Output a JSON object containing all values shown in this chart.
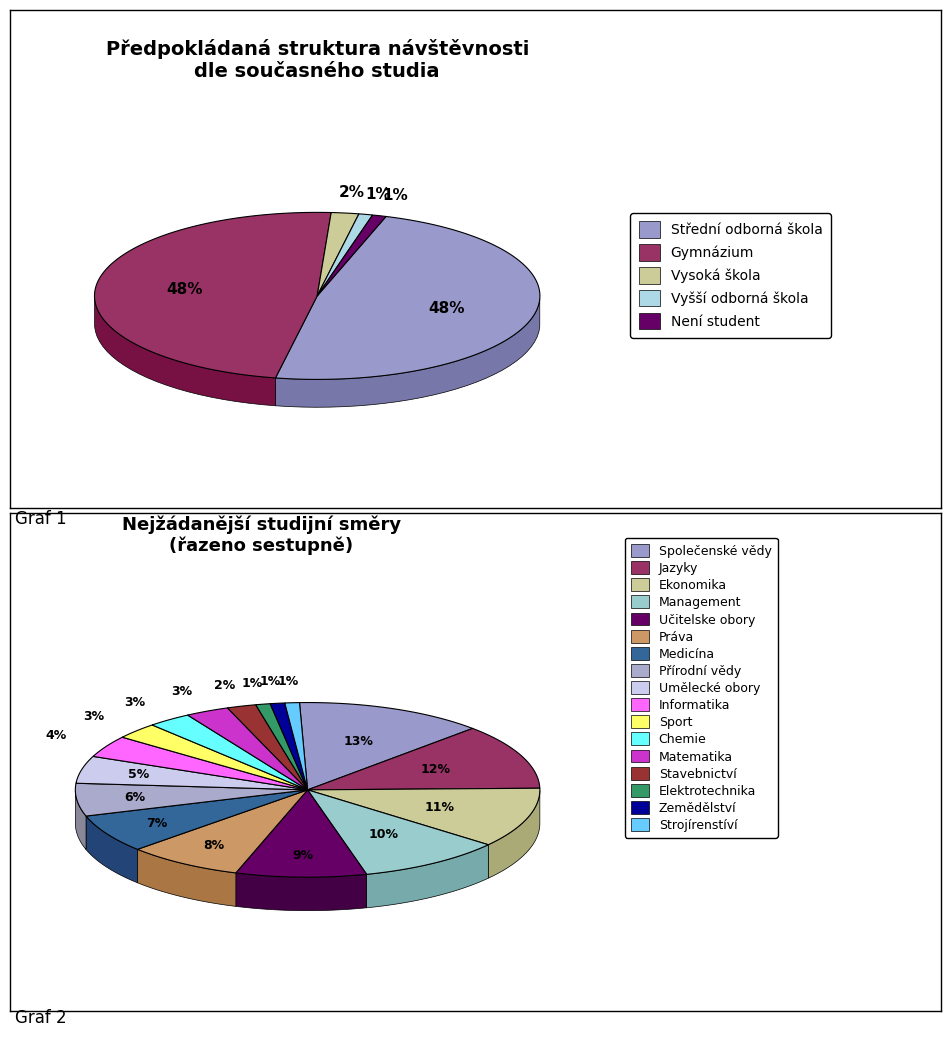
{
  "chart1": {
    "title": "Předpokládaná struktura návštěvnosti\ndle současného studia",
    "values": [
      48,
      48,
      2,
      1,
      1
    ],
    "pct_labels": [
      "48%",
      "48%",
      "2%",
      "1%",
      "1%"
    ],
    "colors": [
      "#9999cc",
      "#993366",
      "#cccc99",
      "#add8e6",
      "#660066"
    ],
    "legend_labels": [
      "Střední odborná škola",
      "Gymnázium",
      "Vysoká škola",
      "Vyšší odborná škola",
      "Není student"
    ],
    "legend_colors": [
      "#9999cc",
      "#993366",
      "#cccc99",
      "#add8e6",
      "#660066"
    ],
    "startangle": 72,
    "shadow_colors": [
      "#7777aa",
      "#771144",
      "#aaaa77",
      "#8bb6c4",
      "#440044"
    ]
  },
  "chart2": {
    "title": "Nejžádanější studijní směry\n(řazeno sestupně)",
    "values": [
      13,
      12,
      11,
      10,
      9,
      8,
      7,
      6,
      5,
      4,
      3,
      3,
      3,
      2,
      1,
      1,
      1
    ],
    "pct_labels": [
      "13%",
      "12%",
      "11%",
      "10%",
      "9%",
      "8%",
      "7%",
      "6%",
      "5%",
      "4%",
      "3%",
      "3%",
      "3%",
      "2%",
      "1%",
      "1%",
      "1%"
    ],
    "colors": [
      "#9999cc",
      "#993366",
      "#cccc99",
      "#99cccc",
      "#660066",
      "#cc9966",
      "#336699",
      "#aaaacc",
      "#ccccee",
      "#ff66ff",
      "#ffff66",
      "#66ffff",
      "#cc33cc",
      "#993333",
      "#339966",
      "#000099",
      "#66ccff"
    ],
    "legend_labels": [
      "Společenské vědy",
      "Jazyky",
      "Ekonomika",
      "Management",
      "Učitelske obory",
      "Práva",
      "Medicína",
      "Přírodní vědy",
      "Umělecké obory",
      "Informatika",
      "Sport",
      "Chemie",
      "Matematika",
      "Stavebnictví",
      "Elektrotechnika",
      "Zemědělství",
      "Strojírenstíví"
    ],
    "shadow_colors": [
      "#7777aa",
      "#771144",
      "#aaaa77",
      "#77aaaa",
      "#440044",
      "#aa7744",
      "#224477",
      "#888899",
      "#aaaacc",
      "#dd44dd",
      "#dddd44",
      "#44dddd",
      "#aa11aa",
      "#772222",
      "#227744",
      "#000077",
      "#44aadd"
    ],
    "startangle": 92
  },
  "graf1_label": "Graf 1",
  "graf2_label": "Graf 2"
}
